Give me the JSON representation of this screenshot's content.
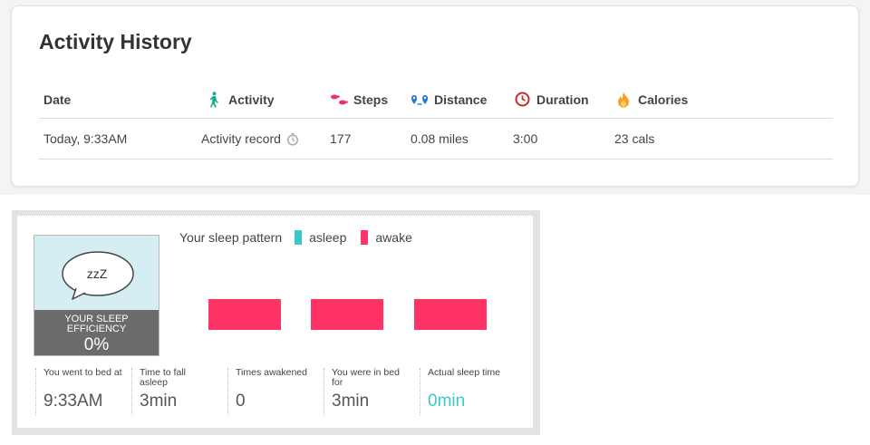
{
  "activity_history": {
    "title": "Activity History",
    "columns": [
      "Date",
      "Activity",
      "Steps",
      "Distance",
      "Duration",
      "Calories"
    ],
    "column_icons": [
      "",
      "walking-person-icon",
      "footprints-icon",
      "distance-pins-icon",
      "clock-icon",
      "flame-icon"
    ],
    "rows": [
      {
        "date": "Today, 9:33AM",
        "activity": "Activity record",
        "steps": "177",
        "distance": "0.08 miles",
        "duration": "3:00",
        "calories": "23 cals"
      }
    ]
  },
  "sleep": {
    "efficiency_label": "YOUR SLEEP EFFICIENCY",
    "efficiency_value": "0%",
    "bubble_text": "zzZ",
    "legend_title": "Your sleep pattern",
    "legend": [
      {
        "label": "asleep",
        "color": "#3cc8c8"
      },
      {
        "label": "awake",
        "color": "#ff3366"
      }
    ],
    "pattern": [
      "awake",
      "awake",
      "awake"
    ],
    "stats": [
      {
        "label": "You went to bed at",
        "value": "9:33AM"
      },
      {
        "label": "Time to fall asleep",
        "value": "3min"
      },
      {
        "label": "Times awakened",
        "value": "0"
      },
      {
        "label": "You were in bed for",
        "value": "3min"
      },
      {
        "label": "Actual sleep time",
        "value": "0min",
        "highlight": "#3cc8c8"
      }
    ]
  }
}
